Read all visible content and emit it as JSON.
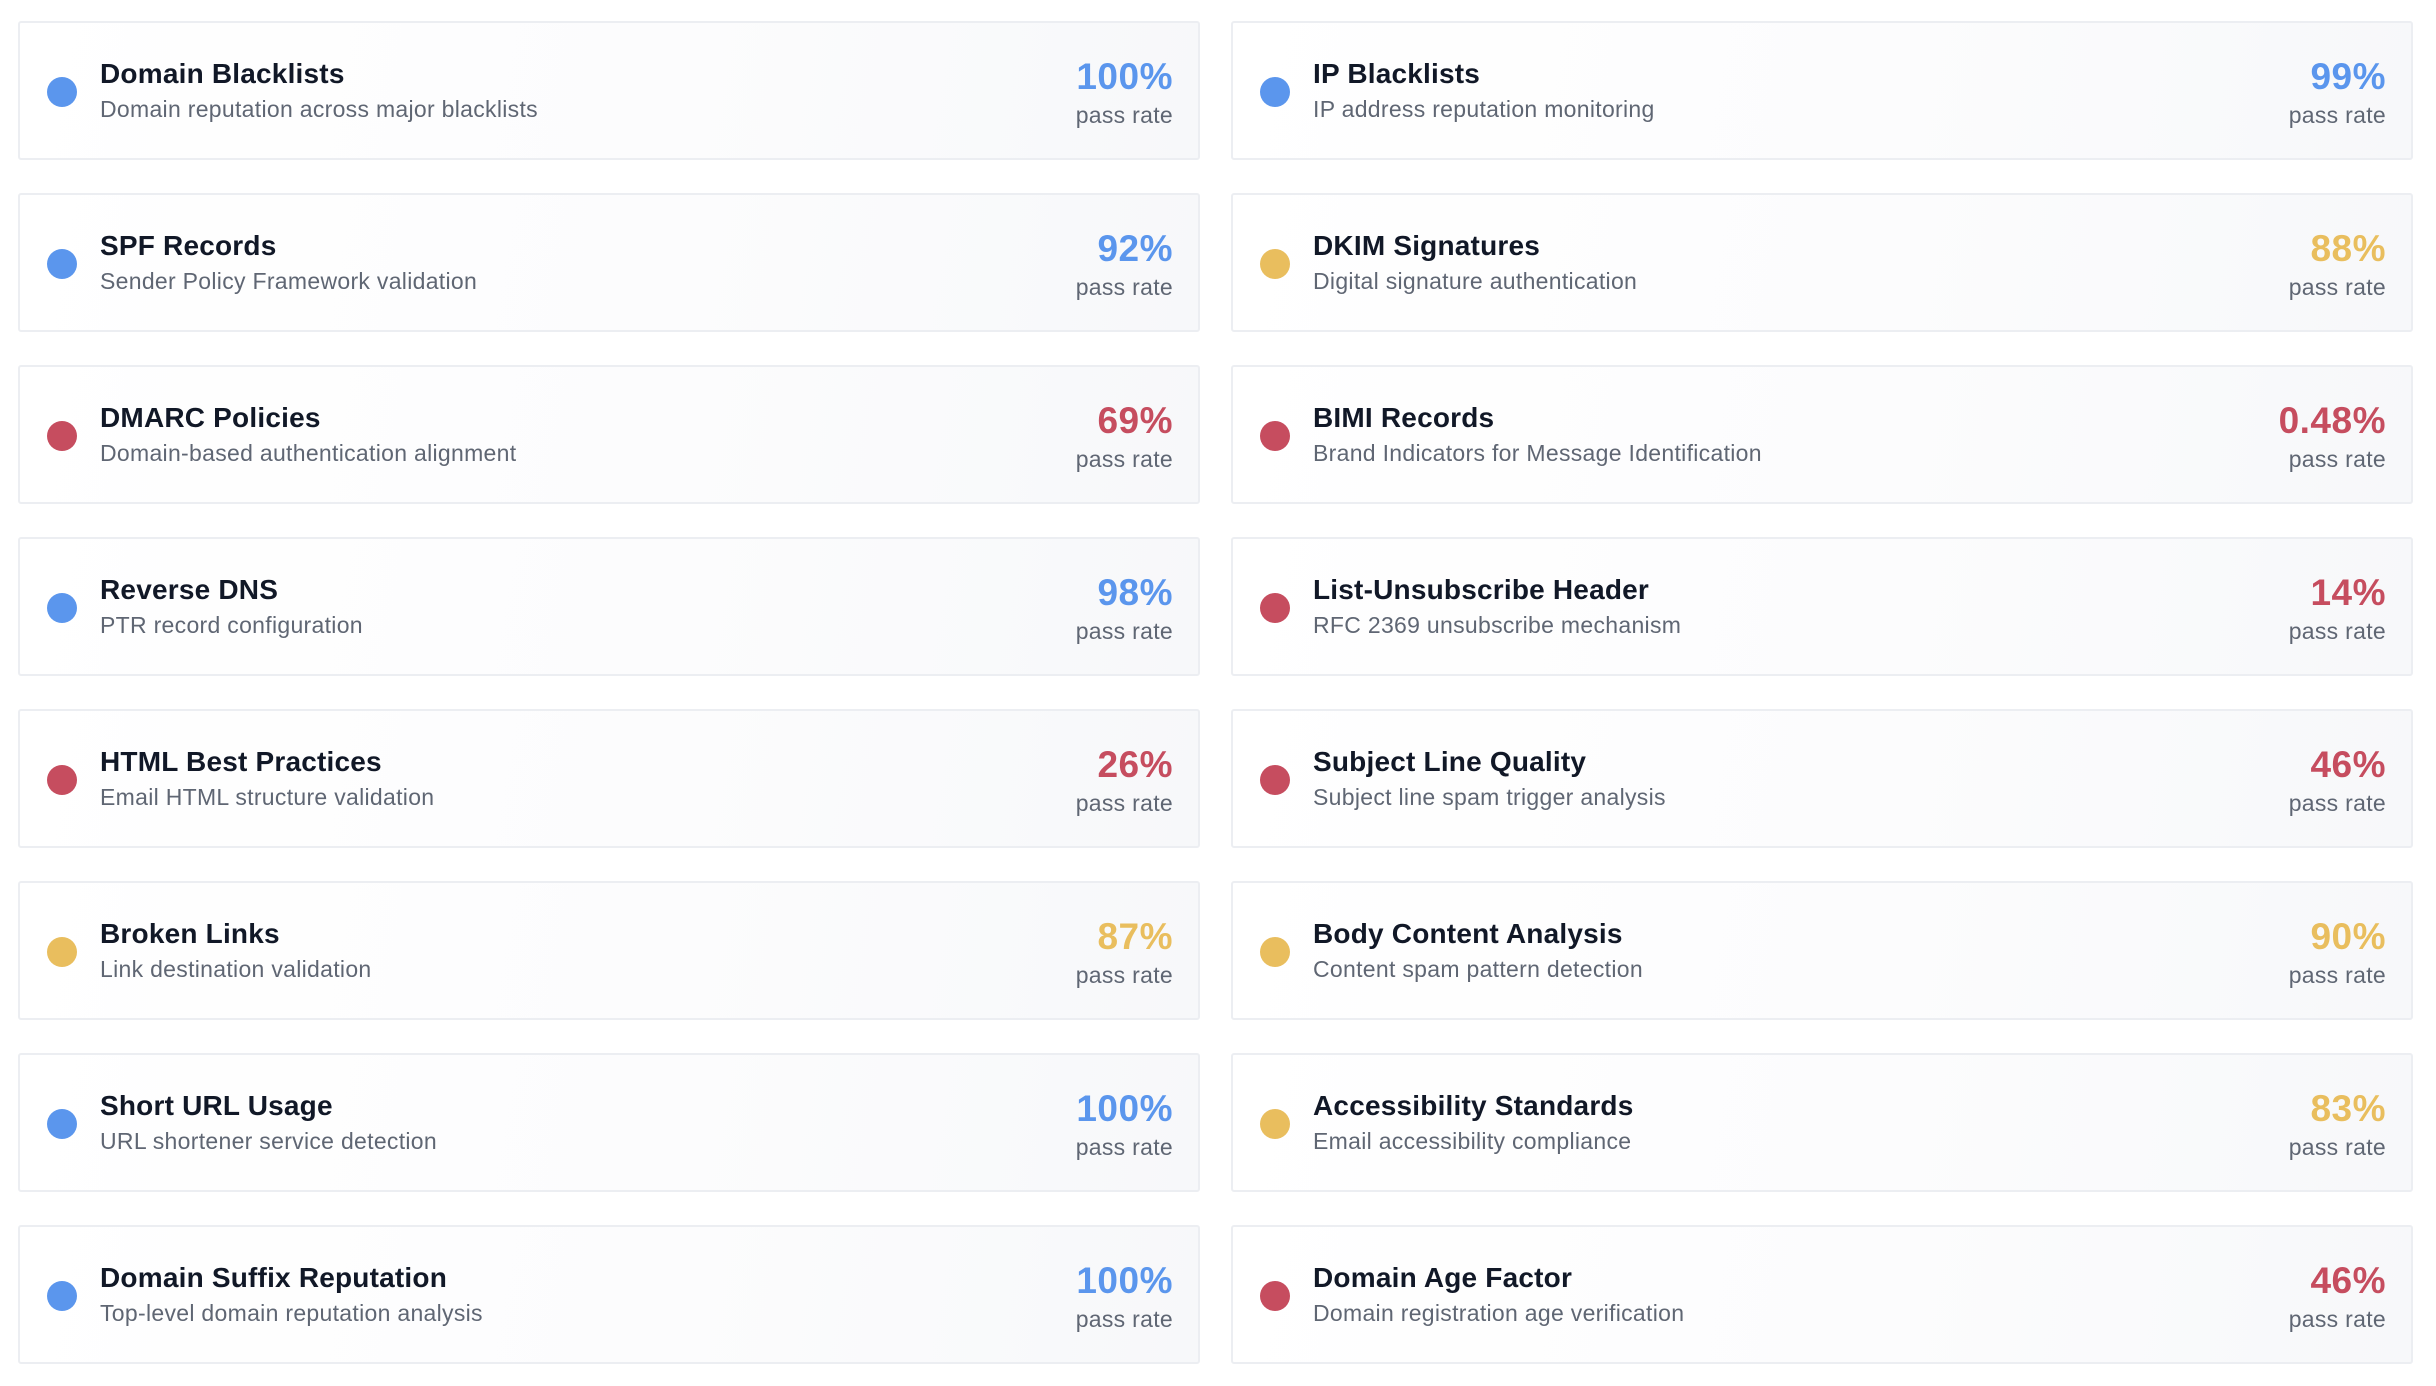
{
  "colors": {
    "good": "#5b96ed",
    "warning": "#e9be5e",
    "bad": "#c64d5f"
  },
  "checks": [
    {
      "title": "Domain Blacklists",
      "description": "Domain reputation across major blacklists",
      "pass_rate": "100%",
      "pass_label": "pass rate",
      "status": "good"
    },
    {
      "title": "IP Blacklists",
      "description": "IP address reputation monitoring",
      "pass_rate": "99%",
      "pass_label": "pass rate",
      "status": "good"
    },
    {
      "title": "SPF Records",
      "description": "Sender Policy Framework validation",
      "pass_rate": "92%",
      "pass_label": "pass rate",
      "status": "good"
    },
    {
      "title": "DKIM Signatures",
      "description": "Digital signature authentication",
      "pass_rate": "88%",
      "pass_label": "pass rate",
      "status": "warning"
    },
    {
      "title": "DMARC Policies",
      "description": "Domain-based authentication alignment",
      "pass_rate": "69%",
      "pass_label": "pass rate",
      "status": "bad"
    },
    {
      "title": "BIMI Records",
      "description": "Brand Indicators for Message Identification",
      "pass_rate": "0.48%",
      "pass_label": "pass rate",
      "status": "bad"
    },
    {
      "title": "Reverse DNS",
      "description": "PTR record configuration",
      "pass_rate": "98%",
      "pass_label": "pass rate",
      "status": "good"
    },
    {
      "title": "List-Unsubscribe Header",
      "description": "RFC 2369 unsubscribe mechanism",
      "pass_rate": "14%",
      "pass_label": "pass rate",
      "status": "bad"
    },
    {
      "title": "HTML Best Practices",
      "description": "Email HTML structure validation",
      "pass_rate": "26%",
      "pass_label": "pass rate",
      "status": "bad"
    },
    {
      "title": "Subject Line Quality",
      "description": "Subject line spam trigger analysis",
      "pass_rate": "46%",
      "pass_label": "pass rate",
      "status": "bad"
    },
    {
      "title": "Broken Links",
      "description": "Link destination validation",
      "pass_rate": "87%",
      "pass_label": "pass rate",
      "status": "warning"
    },
    {
      "title": "Body Content Analysis",
      "description": "Content spam pattern detection",
      "pass_rate": "90%",
      "pass_label": "pass rate",
      "status": "warning"
    },
    {
      "title": "Short URL Usage",
      "description": "URL shortener service detection",
      "pass_rate": "100%",
      "pass_label": "pass rate",
      "status": "good"
    },
    {
      "title": "Accessibility Standards",
      "description": "Email accessibility compliance",
      "pass_rate": "83%",
      "pass_label": "pass rate",
      "status": "warning"
    },
    {
      "title": "Domain Suffix Reputation",
      "description": "Top-level domain reputation analysis",
      "pass_rate": "100%",
      "pass_label": "pass rate",
      "status": "good"
    },
    {
      "title": "Domain Age Factor",
      "description": "Domain registration age verification",
      "pass_rate": "46%",
      "pass_label": "pass rate",
      "status": "bad"
    }
  ]
}
